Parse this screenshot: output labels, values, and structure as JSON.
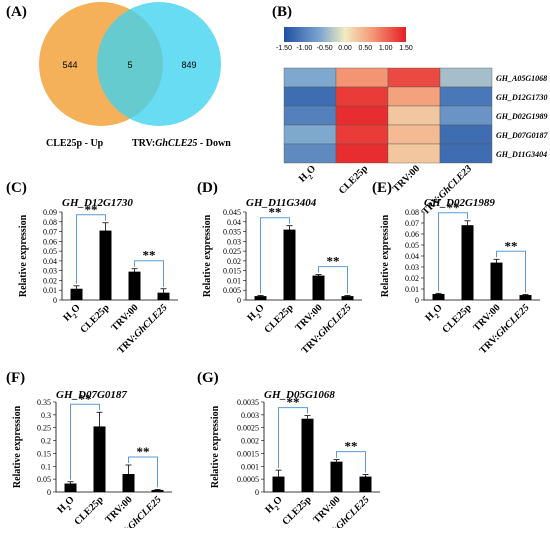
{
  "panels": {
    "A": "(A)",
    "B": "(B)",
    "C": "(C)",
    "D": "(D)",
    "E": "(E)",
    "F": "(F)",
    "G": "(G)"
  },
  "chart_data": [
    {
      "panel": "A",
      "type": "venn",
      "sets": [
        {
          "label_prefix": "CLE25p - Up",
          "label_italic": "",
          "label_suffix": "",
          "only": "544",
          "color": "#f5b15a"
        },
        {
          "label_prefix": "TRV:",
          "label_italic": "GhCLE25",
          "label_suffix": " - Down",
          "only": "849",
          "color": "#3dd2ee"
        }
      ],
      "intersection": "5"
    },
    {
      "panel": "B",
      "type": "heatmap",
      "colorbar_ticks": [
        "-1.50",
        "-1.00",
        "-0.50",
        "0.00",
        "0.50",
        "1.00",
        "1.50"
      ],
      "colorbar_colors": [
        "#1f4fa3",
        "#7fa8cf",
        "#f1ebc0",
        "#f49a77",
        "#e51e25"
      ],
      "rows": [
        "GH_A05G1068",
        "GH_D12G1730",
        "GH_D02G1989",
        "GH_D07G0187",
        "GH_D11G3404"
      ],
      "columns": [
        {
          "prefix": "H",
          "sub": "2",
          "suffix": "O",
          "italic": ""
        },
        {
          "prefix": "CLE25p",
          "sub": "",
          "suffix": "",
          "italic": ""
        },
        {
          "prefix": "TRV:00",
          "sub": "",
          "suffix": "",
          "italic": ""
        },
        {
          "prefix": "TRV:",
          "sub": "",
          "suffix": "",
          "italic": "GhCLE23"
        }
      ],
      "values": [
        [
          -0.6,
          0.7,
          1.2,
          -0.4
        ],
        [
          -1.2,
          1.3,
          0.6,
          -1.1
        ],
        [
          -1.0,
          1.4,
          0.3,
          -0.8
        ],
        [
          -0.6,
          1.3,
          0.4,
          -1.2
        ],
        [
          -0.9,
          1.4,
          0.3,
          -1.2
        ]
      ]
    },
    {
      "panel": "C",
      "type": "bar",
      "title": "GH_D12G1730",
      "ylabel": "Relative expression",
      "yticks": [
        "0",
        "0.01",
        "0.02",
        "0.03",
        "0.04",
        "0.05",
        "0.06",
        "0.07",
        "0.08",
        "0.09"
      ],
      "ylim": [
        0,
        0.09
      ],
      "values": [
        0.0115,
        0.071,
        0.029,
        0.0075
      ],
      "errors": [
        0.003,
        0.008,
        0.003,
        0.004
      ],
      "sig": [
        "**",
        "**"
      ]
    },
    {
      "panel": "D",
      "type": "bar",
      "title": "GH_D11G3404",
      "ylabel": "Relative expression",
      "yticks": [
        "0",
        "0.005",
        "0.01",
        "0.015",
        "0.02",
        "0.025",
        "0.03",
        "0.035",
        "0.04",
        "0.045"
      ],
      "ylim": [
        0,
        0.045
      ],
      "values": [
        0.002,
        0.036,
        0.0125,
        0.002
      ],
      "errors": [
        0.0003,
        0.002,
        0.0005,
        0.0003
      ],
      "sig": [
        "**",
        "**"
      ]
    },
    {
      "panel": "E",
      "type": "bar",
      "title": "GH_D02G1989",
      "ylabel": "Relative expression",
      "yticks": [
        "0",
        "0.01",
        "0.02",
        "0.03",
        "0.04",
        "0.05",
        "0.06",
        "0.07",
        "0.08"
      ],
      "ylim": [
        0,
        0.08
      ],
      "values": [
        0.0055,
        0.068,
        0.034,
        0.0045
      ],
      "errors": [
        0.0006,
        0.004,
        0.003,
        0.0005
      ],
      "sig": [
        "**",
        "**"
      ]
    },
    {
      "panel": "F",
      "type": "bar",
      "title": "GH_D07G0187",
      "ylabel": "Relative expression",
      "yticks": [
        "0",
        "0.05",
        "0.1",
        "0.15",
        "0.2",
        "0.25",
        "0.3",
        "0.35"
      ],
      "ylim": [
        0,
        0.35
      ],
      "values": [
        0.033,
        0.255,
        0.07,
        0.008
      ],
      "errors": [
        0.007,
        0.055,
        0.035,
        0.002
      ],
      "sig": [
        "**",
        "**"
      ]
    },
    {
      "panel": "G",
      "type": "bar",
      "title": "GH_D05G1068",
      "ylabel": "Relative expression",
      "yticks": [
        "0",
        "0.0005",
        "0.001",
        "0.0015",
        "0.002",
        "0.0025",
        "0.003",
        "0.0035"
      ],
      "ylim": [
        0,
        0.0035
      ],
      "values": [
        0.0006,
        0.00285,
        0.00118,
        0.0006
      ],
      "errors": [
        0.00025,
        0.00012,
        8e-05,
        8e-05
      ],
      "sig": [
        "**",
        "**"
      ]
    }
  ],
  "bar_categories": [
    {
      "prefix": "H",
      "sub": "2",
      "suffix": "O",
      "italic": ""
    },
    {
      "prefix": "CLE25p",
      "sub": "",
      "suffix": "",
      "italic": ""
    },
    {
      "prefix": "TRV:00",
      "sub": "",
      "suffix": "",
      "italic": ""
    },
    {
      "prefix": "TRV:",
      "sub": "",
      "suffix": "",
      "italic": "GhCLE25"
    }
  ],
  "colors": {
    "bar": "#000000",
    "bracket": "#5b9bd5"
  }
}
